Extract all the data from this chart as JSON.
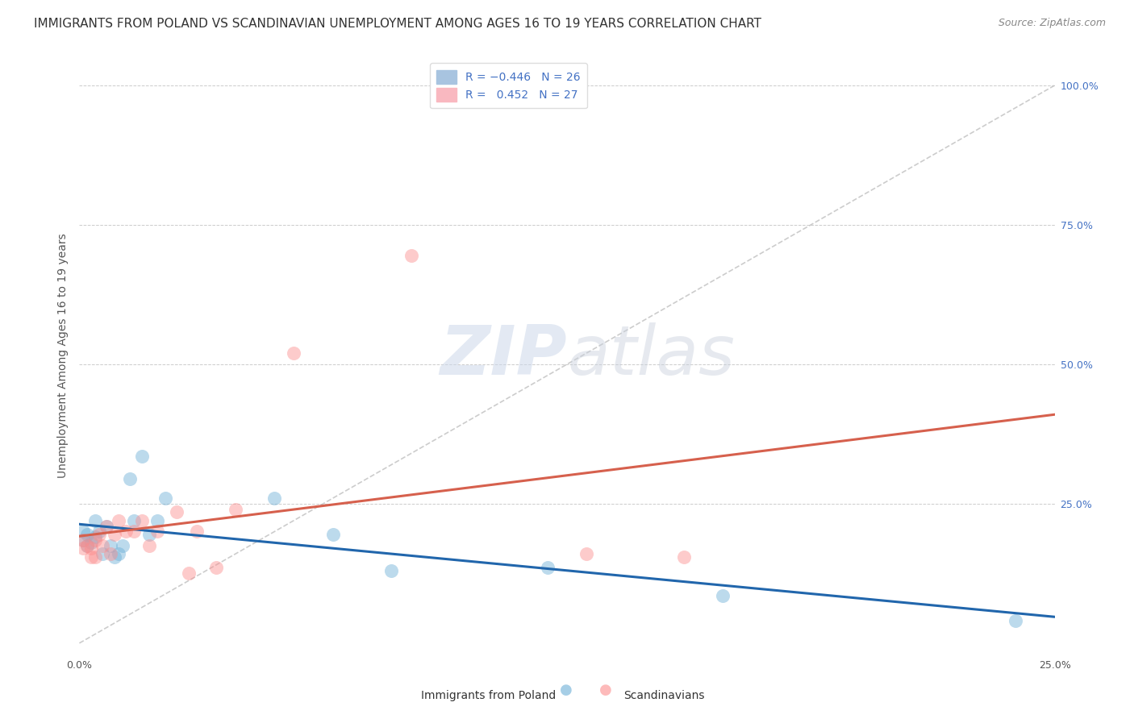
{
  "title": "IMMIGRANTS FROM POLAND VS SCANDINAVIAN UNEMPLOYMENT AMONG AGES 16 TO 19 YEARS CORRELATION CHART",
  "source": "Source: ZipAtlas.com",
  "ylabel": "Unemployment Among Ages 16 to 19 years",
  "xlim": [
    0.0,
    0.25
  ],
  "ylim": [
    -0.02,
    1.05
  ],
  "poland_x": [
    0.001,
    0.001,
    0.002,
    0.002,
    0.003,
    0.004,
    0.004,
    0.005,
    0.006,
    0.007,
    0.008,
    0.009,
    0.01,
    0.011,
    0.013,
    0.014,
    0.016,
    0.018,
    0.02,
    0.022,
    0.05,
    0.065,
    0.08,
    0.12,
    0.165,
    0.24
  ],
  "poland_y": [
    0.2,
    0.185,
    0.195,
    0.175,
    0.18,
    0.19,
    0.22,
    0.2,
    0.16,
    0.21,
    0.175,
    0.155,
    0.16,
    0.175,
    0.295,
    0.22,
    0.335,
    0.195,
    0.22,
    0.26,
    0.26,
    0.195,
    0.13,
    0.135,
    0.085,
    0.04
  ],
  "scandin_x": [
    0.001,
    0.001,
    0.002,
    0.003,
    0.003,
    0.004,
    0.004,
    0.005,
    0.006,
    0.007,
    0.008,
    0.009,
    0.01,
    0.012,
    0.014,
    0.016,
    0.018,
    0.02,
    0.025,
    0.028,
    0.03,
    0.035,
    0.04,
    0.055,
    0.085,
    0.13,
    0.155
  ],
  "scandin_y": [
    0.185,
    0.17,
    0.175,
    0.155,
    0.17,
    0.185,
    0.155,
    0.195,
    0.175,
    0.21,
    0.16,
    0.195,
    0.22,
    0.2,
    0.2,
    0.22,
    0.175,
    0.2,
    0.235,
    0.125,
    0.2,
    0.135,
    0.24,
    0.52,
    0.695,
    0.16,
    0.155
  ],
  "poland_color": "#6baed6",
  "scandin_color": "#fc8d8d",
  "poland_trendline_color": "#2166ac",
  "scandin_trendline_color": "#d6604d",
  "dashed_line_color": "#c0c0c0",
  "background_color": "#ffffff",
  "watermark": "ZIPatlas",
  "title_fontsize": 11,
  "axis_label_fontsize": 10,
  "tick_fontsize": 9,
  "legend_fontsize": 10,
  "source_fontsize": 9
}
